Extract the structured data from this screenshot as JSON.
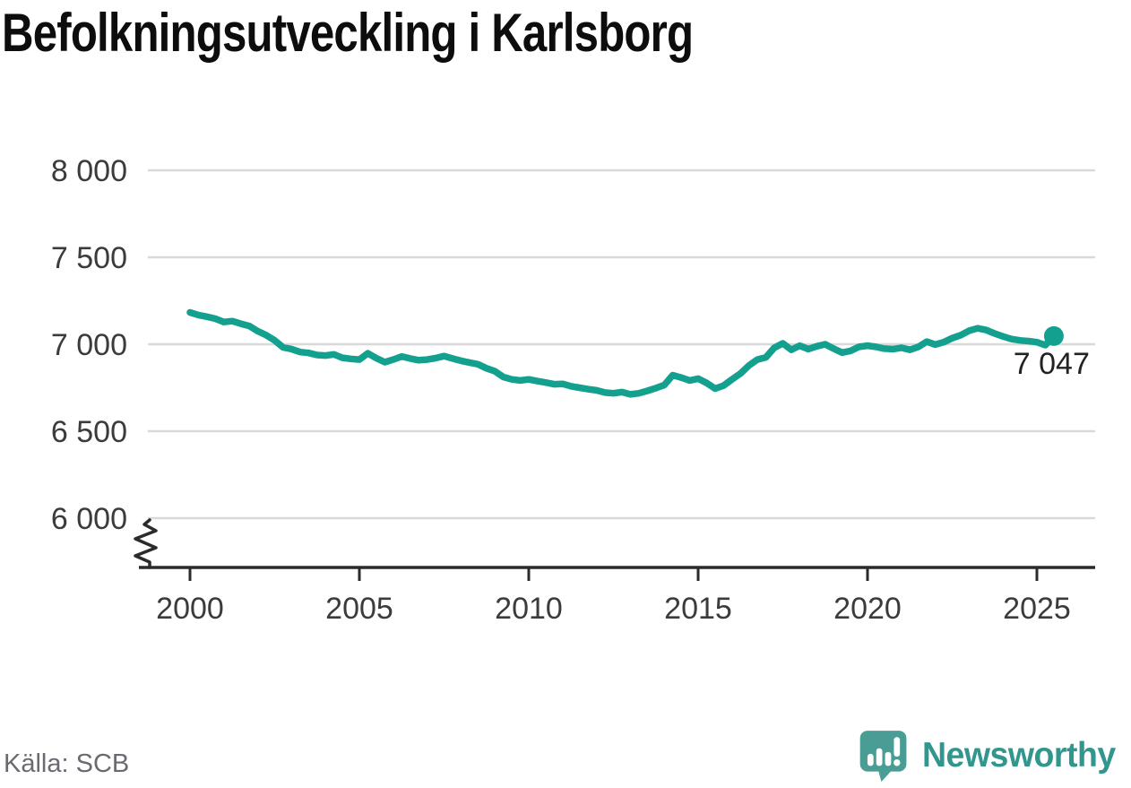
{
  "title": "Befolkningsutveckling i Karlsborg",
  "source": "Källa: SCB",
  "branding": {
    "name": "Newsworthy",
    "icon": "newsworthy-speech-bubble-chart-icon",
    "icon_color": "#4a9d95",
    "text_color": "#31968d"
  },
  "chart_data": {
    "type": "line",
    "title": "Befolkningsutveckling i Karlsborg",
    "xlabel": "",
    "ylabel": "",
    "legend_position": "none",
    "grid": "horizontal",
    "axis_break_bottom_left": true,
    "line_color": "#14a08e",
    "grid_color": "#d9d9d9",
    "axis_color": "#2b2b2b",
    "tick_label_color": "#3b3b3b",
    "end_label": "7 047",
    "end_label_color": "#222222",
    "last_value": 7047,
    "y_ticks": {
      "values": [
        6000,
        6500,
        7000,
        7500,
        8000
      ],
      "labels": [
        "6 000",
        "6 500",
        "7 000",
        "7 500",
        "8 000"
      ]
    },
    "x_ticks": {
      "values": [
        2000,
        2005,
        2010,
        2015,
        2020,
        2025
      ],
      "labels": [
        "2000",
        "2005",
        "2010",
        "2015",
        "2020",
        "2025"
      ]
    },
    "xlim": [
      1998.5,
      2026.7
    ],
    "ylim_visible": [
      6000,
      8000
    ],
    "series": [
      {
        "name": "Befolkning",
        "x_start": 2000,
        "x_step": 0.25,
        "values": [
          7183,
          7168,
          7158,
          7147,
          7128,
          7133,
          7118,
          7105,
          7075,
          7052,
          7022,
          6982,
          6972,
          6955,
          6950,
          6938,
          6935,
          6942,
          6922,
          6916,
          6912,
          6948,
          6920,
          6897,
          6912,
          6930,
          6918,
          6908,
          6912,
          6920,
          6932,
          6918,
          6905,
          6895,
          6885,
          6862,
          6845,
          6812,
          6798,
          6792,
          6798,
          6788,
          6780,
          6770,
          6772,
          6758,
          6750,
          6742,
          6735,
          6722,
          6718,
          6725,
          6712,
          6718,
          6732,
          6748,
          6765,
          6822,
          6808,
          6792,
          6802,
          6778,
          6745,
          6762,
          6798,
          6832,
          6878,
          6912,
          6925,
          6980,
          7005,
          6968,
          6992,
          6972,
          6988,
          7000,
          6975,
          6952,
          6962,
          6985,
          6992,
          6985,
          6975,
          6972,
          6980,
          6968,
          6985,
          7015,
          6998,
          7012,
          7035,
          7052,
          7078,
          7092,
          7082,
          7062,
          7045,
          7030,
          7022,
          7018,
          7012,
          6995,
          7047
        ]
      }
    ]
  }
}
